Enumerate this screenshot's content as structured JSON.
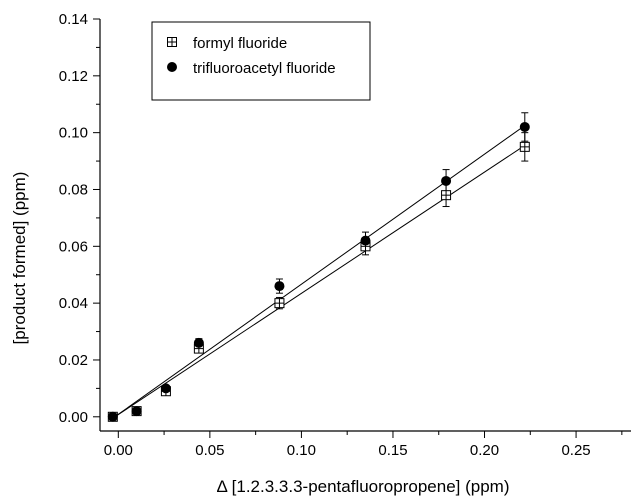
{
  "chart_data": {
    "type": "scatter",
    "title": "",
    "xlabel": "Δ [1.2.3.3.3-pentafluoropropene] (ppm)",
    "ylabel": "[product formed] (ppm)",
    "xlim": [
      -0.01,
      0.28
    ],
    "ylim": [
      -0.005,
      0.14
    ],
    "xticks": [
      0.0,
      0.05,
      0.1,
      0.15,
      0.2,
      0.25
    ],
    "xtick_labels": [
      "0.00",
      "0.05",
      "0.10",
      "0.15",
      "0.20",
      "0.25"
    ],
    "yticks": [
      0.0,
      0.02,
      0.04,
      0.06,
      0.08,
      0.1,
      0.12,
      0.14
    ],
    "ytick_labels": [
      "0.00",
      "0.02",
      "0.04",
      "0.06",
      "0.08",
      "0.10",
      "0.12",
      "0.14"
    ],
    "grid": false,
    "legend_position": "top-left",
    "series": [
      {
        "name": "formyl fluoride",
        "marker": "square-cross",
        "color": "#000000",
        "x": [
          -0.003,
          0.01,
          0.026,
          0.044,
          0.088,
          0.135,
          0.179,
          0.222
        ],
        "y": [
          0.0,
          0.002,
          0.009,
          0.024,
          0.04,
          0.06,
          0.078,
          0.095
        ],
        "yerr": [
          0.001,
          0.001,
          0.001,
          0.0015,
          0.002,
          0.003,
          0.004,
          0.005
        ],
        "fit": {
          "x0": -0.003,
          "y0": -0.0005,
          "x1": 0.222,
          "y1": 0.0955
        }
      },
      {
        "name": "trifluoroacetyl fluoride",
        "marker": "filled-circle",
        "color": "#000000",
        "x": [
          -0.003,
          0.01,
          0.026,
          0.044,
          0.088,
          0.135,
          0.179,
          0.222
        ],
        "y": [
          0.0,
          0.002,
          0.01,
          0.026,
          0.046,
          0.062,
          0.083,
          0.102
        ],
        "yerr": [
          0.001,
          0.001,
          0.001,
          0.0015,
          0.0025,
          0.003,
          0.004,
          0.005
        ],
        "fit": {
          "x0": -0.003,
          "y0": -0.0005,
          "x1": 0.222,
          "y1": 0.1025
        }
      }
    ]
  }
}
